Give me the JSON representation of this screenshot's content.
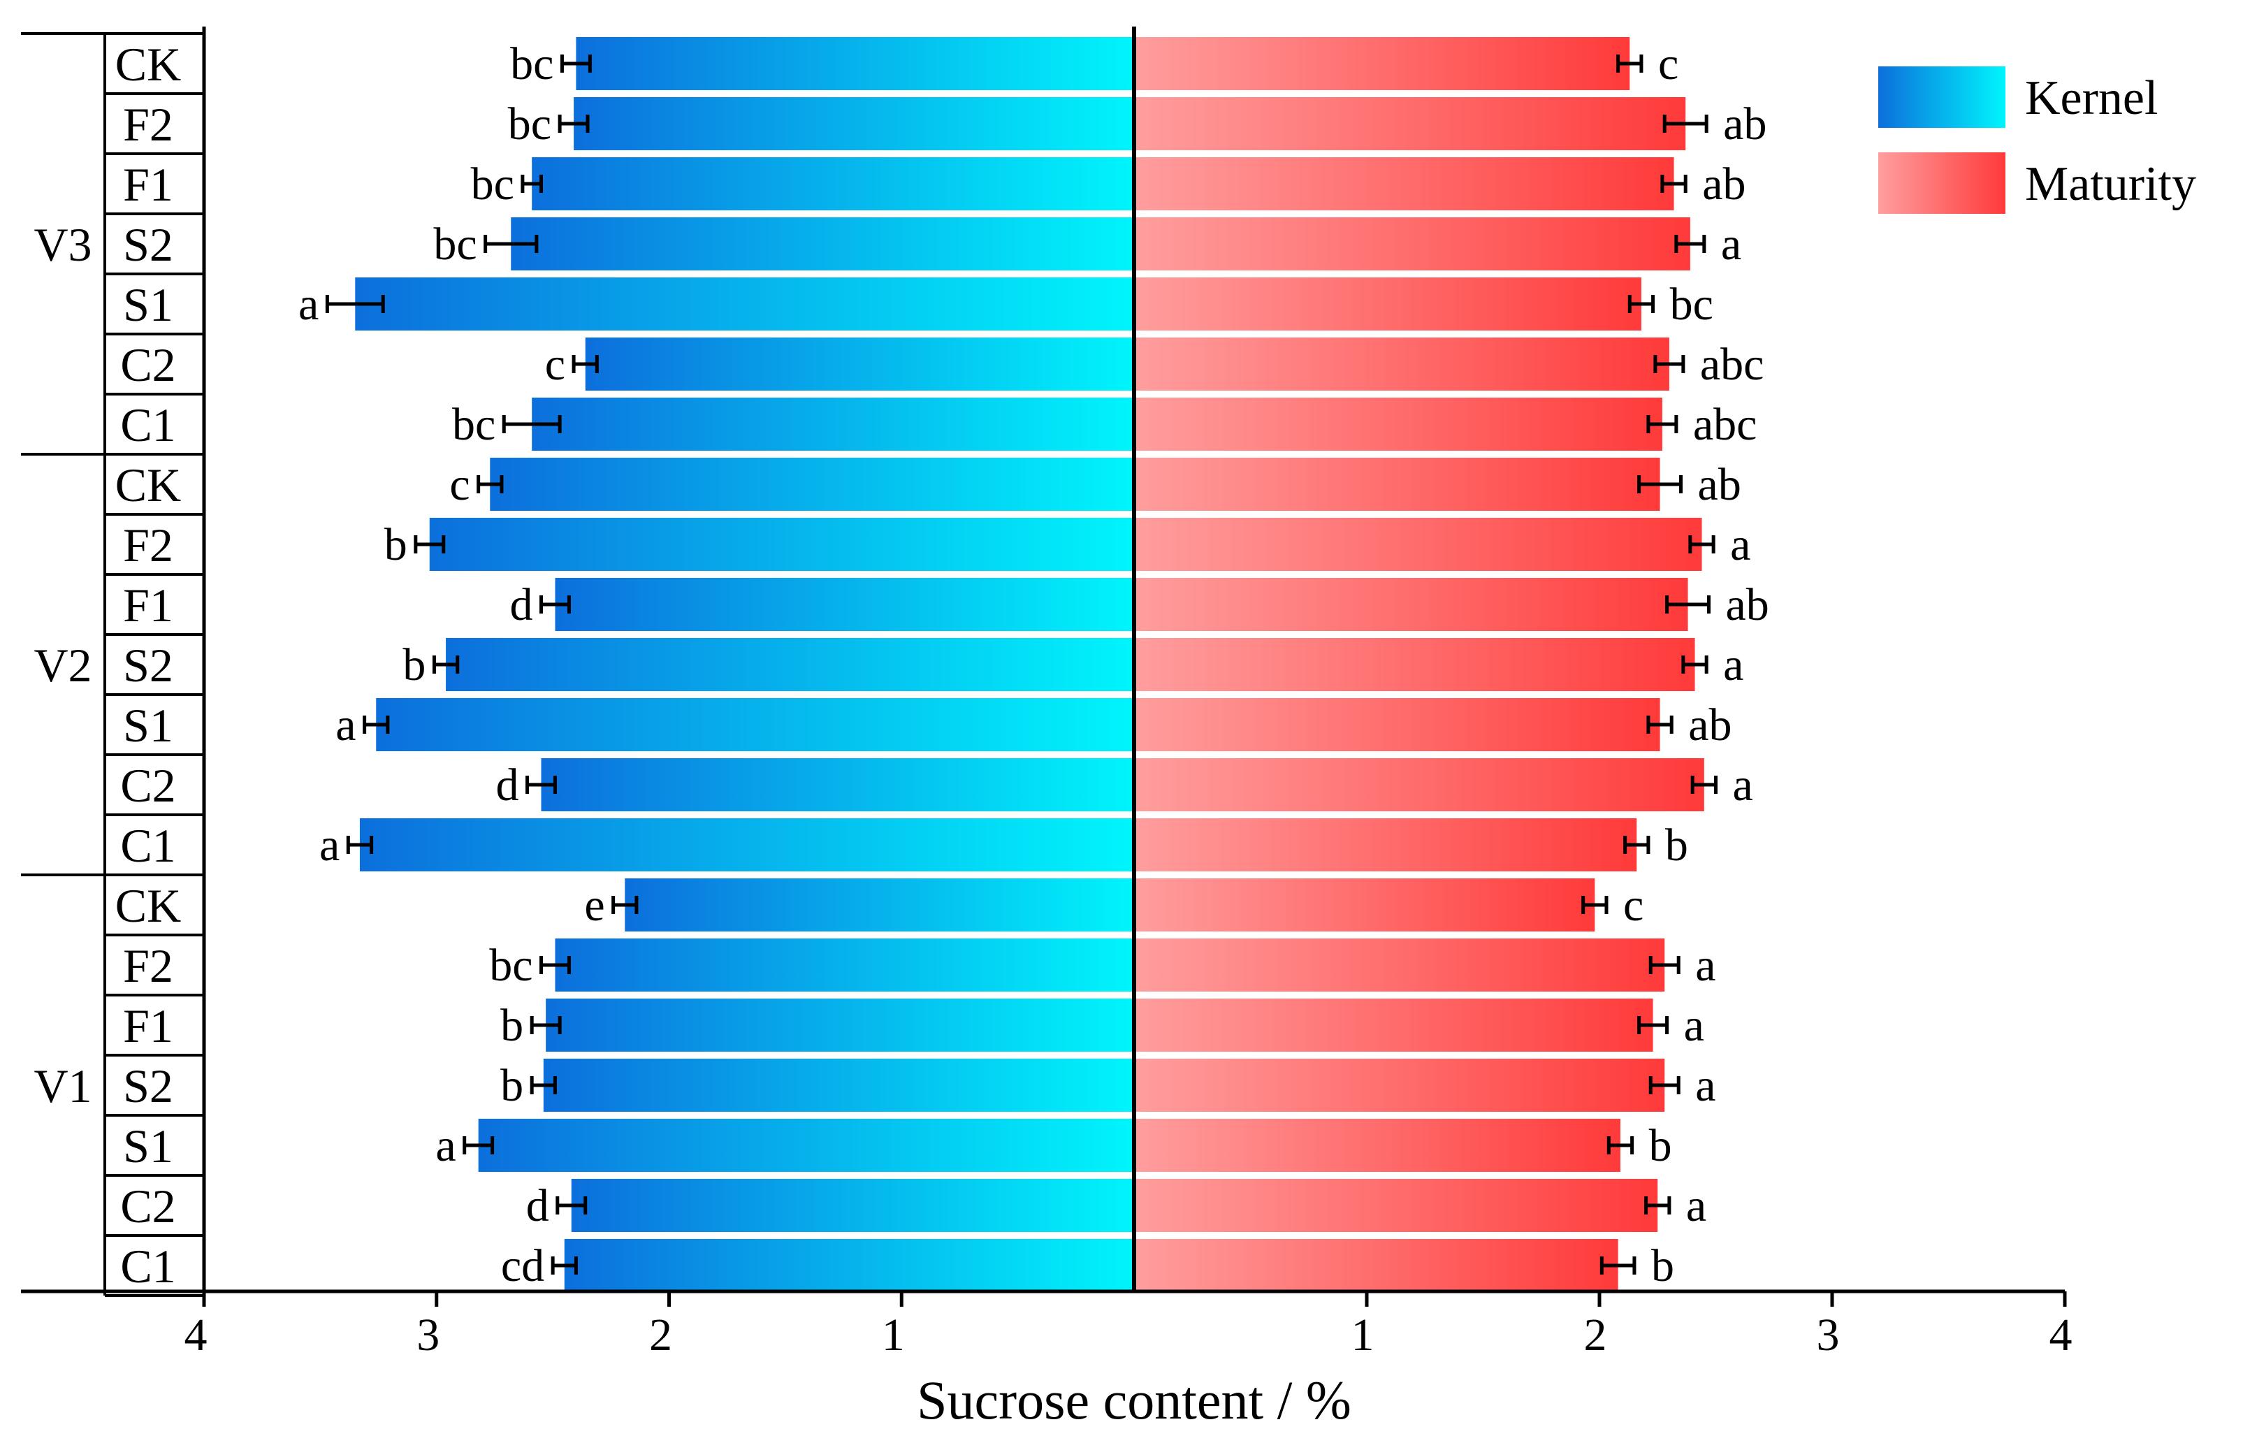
{
  "chart_data": {
    "type": "bar",
    "orientation": "horizontal-butterfly",
    "xlabel": "Sucrose content / %",
    "x_ticks_left": [
      "4",
      "3",
      "2",
      "1"
    ],
    "x_ticks_right": [
      "1",
      "2",
      "3",
      "4"
    ],
    "xlim": [
      0,
      4
    ],
    "legend": {
      "position": "top-right",
      "entries": [
        "Kernel",
        "Maturity"
      ]
    },
    "colors": {
      "kernel_dark": "#0c6fdc",
      "kernel_light": "#00f5fc",
      "maturity_light": "#ff9e9e",
      "maturity_dark": "#ff3a3a"
    },
    "groups": [
      {
        "name": "V3",
        "rows": [
          {
            "treatment": "CK",
            "kernel": 2.4,
            "kernel_err": 0.06,
            "kernel_sig": "bc",
            "maturity": 2.13,
            "maturity_err": 0.05,
            "maturity_sig": "c"
          },
          {
            "treatment": "F2",
            "kernel": 2.41,
            "kernel_err": 0.06,
            "kernel_sig": "bc",
            "maturity": 2.37,
            "maturity_err": 0.09,
            "maturity_sig": "ab"
          },
          {
            "treatment": "F1",
            "kernel": 2.59,
            "kernel_err": 0.04,
            "kernel_sig": "bc",
            "maturity": 2.32,
            "maturity_err": 0.05,
            "maturity_sig": "ab"
          },
          {
            "treatment": "S2",
            "kernel": 2.68,
            "kernel_err": 0.11,
            "kernel_sig": "bc",
            "maturity": 2.39,
            "maturity_err": 0.06,
            "maturity_sig": "a"
          },
          {
            "treatment": "S1",
            "kernel": 3.35,
            "kernel_err": 0.12,
            "kernel_sig": "a",
            "maturity": 2.18,
            "maturity_err": 0.05,
            "maturity_sig": "bc"
          },
          {
            "treatment": "C2",
            "kernel": 2.36,
            "kernel_err": 0.05,
            "kernel_sig": "c",
            "maturity": 2.3,
            "maturity_err": 0.06,
            "maturity_sig": "abc"
          },
          {
            "treatment": "C1",
            "kernel": 2.59,
            "kernel_err": 0.12,
            "kernel_sig": "bc",
            "maturity": 2.27,
            "maturity_err": 0.06,
            "maturity_sig": "abc"
          }
        ]
      },
      {
        "name": "V2",
        "rows": [
          {
            "treatment": "CK",
            "kernel": 2.77,
            "kernel_err": 0.05,
            "kernel_sig": "c",
            "maturity": 2.26,
            "maturity_err": 0.09,
            "maturity_sig": "ab"
          },
          {
            "treatment": "F2",
            "kernel": 3.03,
            "kernel_err": 0.06,
            "kernel_sig": "b",
            "maturity": 2.44,
            "maturity_err": 0.05,
            "maturity_sig": "a"
          },
          {
            "treatment": "F1",
            "kernel": 2.49,
            "kernel_err": 0.06,
            "kernel_sig": "d",
            "maturity": 2.38,
            "maturity_err": 0.09,
            "maturity_sig": "ab"
          },
          {
            "treatment": "S2",
            "kernel": 2.96,
            "kernel_err": 0.05,
            "kernel_sig": "b",
            "maturity": 2.41,
            "maturity_err": 0.05,
            "maturity_sig": "a"
          },
          {
            "treatment": "S1",
            "kernel": 3.26,
            "kernel_err": 0.05,
            "kernel_sig": "a",
            "maturity": 2.26,
            "maturity_err": 0.05,
            "maturity_sig": "ab"
          },
          {
            "treatment": "C2",
            "kernel": 2.55,
            "kernel_err": 0.06,
            "kernel_sig": "d",
            "maturity": 2.45,
            "maturity_err": 0.05,
            "maturity_sig": "a"
          },
          {
            "treatment": "C1",
            "kernel": 3.33,
            "kernel_err": 0.05,
            "kernel_sig": "a",
            "maturity": 2.16,
            "maturity_err": 0.05,
            "maturity_sig": "b"
          }
        ]
      },
      {
        "name": "V1",
        "rows": [
          {
            "treatment": "CK",
            "kernel": 2.19,
            "kernel_err": 0.05,
            "kernel_sig": "e",
            "maturity": 1.98,
            "maturity_err": 0.05,
            "maturity_sig": "c"
          },
          {
            "treatment": "F2",
            "kernel": 2.49,
            "kernel_err": 0.06,
            "kernel_sig": "bc",
            "maturity": 2.28,
            "maturity_err": 0.06,
            "maturity_sig": "a"
          },
          {
            "treatment": "F1",
            "kernel": 2.53,
            "kernel_err": 0.06,
            "kernel_sig": "b",
            "maturity": 2.23,
            "maturity_err": 0.06,
            "maturity_sig": "a"
          },
          {
            "treatment": "S2",
            "kernel": 2.54,
            "kernel_err": 0.05,
            "kernel_sig": "b",
            "maturity": 2.28,
            "maturity_err": 0.06,
            "maturity_sig": "a"
          },
          {
            "treatment": "S1",
            "kernel": 2.82,
            "kernel_err": 0.06,
            "kernel_sig": "a",
            "maturity": 2.09,
            "maturity_err": 0.05,
            "maturity_sig": "b"
          },
          {
            "treatment": "C2",
            "kernel": 2.42,
            "kernel_err": 0.06,
            "kernel_sig": "d",
            "maturity": 2.25,
            "maturity_err": 0.05,
            "maturity_sig": "a"
          },
          {
            "treatment": "C1",
            "kernel": 2.45,
            "kernel_err": 0.05,
            "kernel_sig": "cd",
            "maturity": 2.08,
            "maturity_err": 0.07,
            "maturity_sig": "b"
          }
        ]
      }
    ]
  }
}
